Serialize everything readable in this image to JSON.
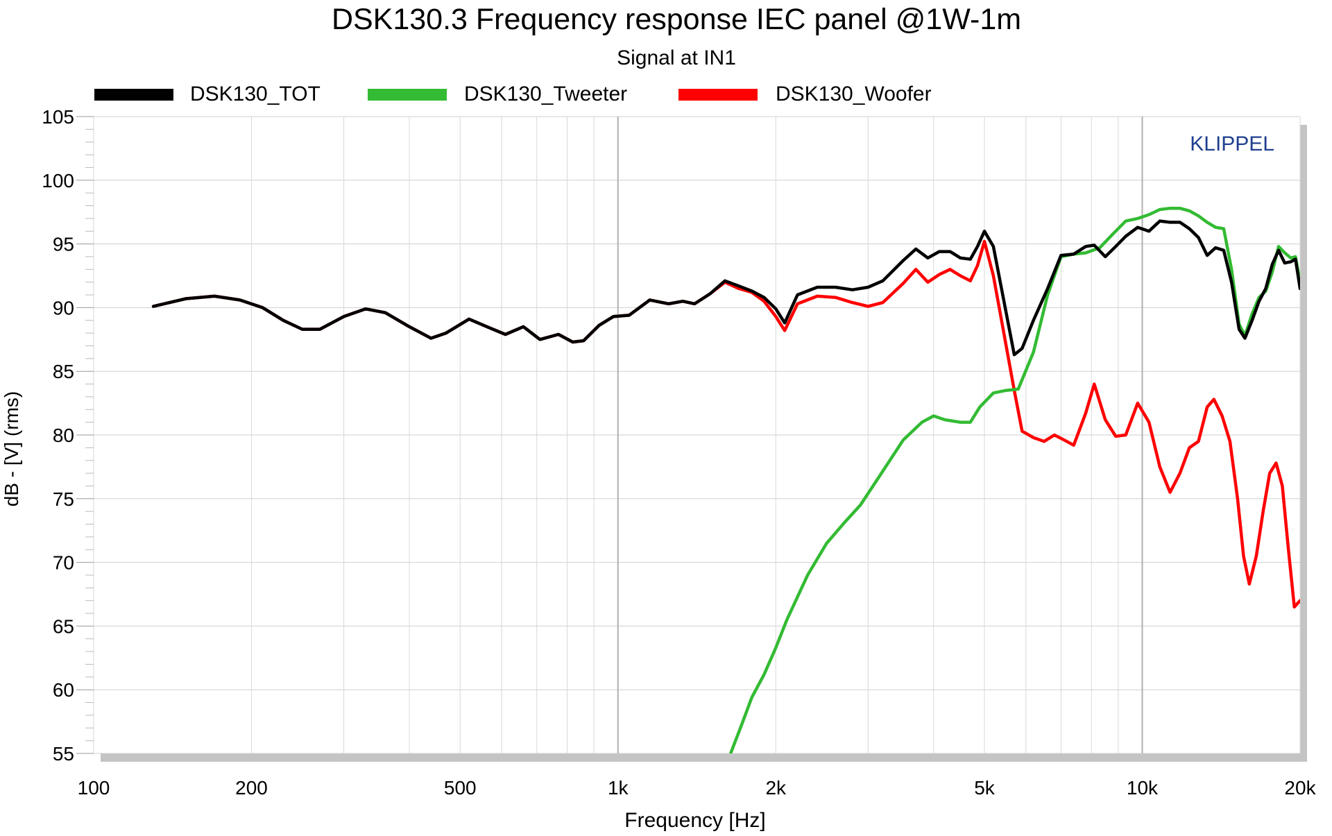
{
  "chart_data": {
    "type": "line",
    "title": "DSK130.3 Frequency response IEC panel @1W-1m",
    "subtitle": "Signal at IN1",
    "xlabel": "Frequency [Hz]",
    "ylabel": "dB - [V]  (rms)",
    "watermark": "KLIPPEL",
    "x_scale": "log",
    "xlim": [
      100,
      20000
    ],
    "ylim": [
      55,
      105
    ],
    "grid": true,
    "legend_position": "top",
    "x_ticks": [
      {
        "value": 100,
        "label": "100"
      },
      {
        "value": 200,
        "label": "200"
      },
      {
        "value": 500,
        "label": "500"
      },
      {
        "value": 1000,
        "label": "1k"
      },
      {
        "value": 2000,
        "label": "2k"
      },
      {
        "value": 5000,
        "label": "5k"
      },
      {
        "value": 10000,
        "label": "10k"
      },
      {
        "value": 20000,
        "label": "20k"
      }
    ],
    "y_ticks": [
      105,
      100,
      95,
      90,
      85,
      80,
      75,
      70,
      65,
      60,
      55
    ],
    "series": [
      {
        "name": "DSK130_Woofer",
        "color": "#ff0000",
        "points": [
          [
            130,
            90.1
          ],
          [
            150,
            90.7
          ],
          [
            170,
            90.9
          ],
          [
            190,
            90.6
          ],
          [
            210,
            90.0
          ],
          [
            230,
            89.0
          ],
          [
            250,
            88.3
          ],
          [
            270,
            88.3
          ],
          [
            300,
            89.3
          ],
          [
            330,
            89.9
          ],
          [
            360,
            89.6
          ],
          [
            400,
            88.5
          ],
          [
            440,
            87.6
          ],
          [
            470,
            88.0
          ],
          [
            520,
            89.1
          ],
          [
            570,
            88.4
          ],
          [
            610,
            87.9
          ],
          [
            660,
            88.5
          ],
          [
            710,
            87.5
          ],
          [
            770,
            87.9
          ],
          [
            820,
            87.3
          ],
          [
            860,
            87.4
          ],
          [
            920,
            88.6
          ],
          [
            980,
            89.3
          ],
          [
            1050,
            89.4
          ],
          [
            1150,
            90.6
          ],
          [
            1250,
            90.3
          ],
          [
            1330,
            90.5
          ],
          [
            1400,
            90.3
          ],
          [
            1500,
            91.1
          ],
          [
            1600,
            92.0
          ],
          [
            1700,
            91.5
          ],
          [
            1800,
            91.2
          ],
          [
            1900,
            90.5
          ],
          [
            2000,
            89.3
          ],
          [
            2080,
            88.2
          ],
          [
            2200,
            90.3
          ],
          [
            2400,
            90.9
          ],
          [
            2600,
            90.8
          ],
          [
            2800,
            90.4
          ],
          [
            3000,
            90.1
          ],
          [
            3200,
            90.4
          ],
          [
            3500,
            91.9
          ],
          [
            3700,
            93.0
          ],
          [
            3900,
            92.0
          ],
          [
            4100,
            92.6
          ],
          [
            4300,
            93.0
          ],
          [
            4500,
            92.5
          ],
          [
            4700,
            92.1
          ],
          [
            4850,
            93.3
          ],
          [
            5000,
            95.2
          ],
          [
            5200,
            92.5
          ],
          [
            5400,
            88.8
          ],
          [
            5700,
            83.5
          ],
          [
            5900,
            80.3
          ],
          [
            6200,
            79.8
          ],
          [
            6500,
            79.5
          ],
          [
            6800,
            80.0
          ],
          [
            7100,
            79.6
          ],
          [
            7400,
            79.2
          ],
          [
            7800,
            81.7
          ],
          [
            8100,
            84.0
          ],
          [
            8500,
            81.2
          ],
          [
            8900,
            79.9
          ],
          [
            9300,
            80.0
          ],
          [
            9800,
            82.5
          ],
          [
            10300,
            81.0
          ],
          [
            10800,
            77.5
          ],
          [
            11300,
            75.5
          ],
          [
            11800,
            77.0
          ],
          [
            12300,
            79.0
          ],
          [
            12800,
            79.5
          ],
          [
            13300,
            82.2
          ],
          [
            13700,
            82.8
          ],
          [
            14200,
            81.5
          ],
          [
            14700,
            79.5
          ],
          [
            15200,
            75.0
          ],
          [
            15600,
            70.5
          ],
          [
            16000,
            68.3
          ],
          [
            16500,
            70.5
          ],
          [
            17000,
            74.0
          ],
          [
            17500,
            77.0
          ],
          [
            18000,
            77.8
          ],
          [
            18500,
            76.0
          ],
          [
            19000,
            71.0
          ],
          [
            19500,
            66.5
          ],
          [
            20000,
            67.0
          ]
        ]
      },
      {
        "name": "DSK130_Tweeter",
        "color": "#33bb33",
        "points": [
          [
            1640,
            55.0
          ],
          [
            1720,
            57.2
          ],
          [
            1800,
            59.4
          ],
          [
            1900,
            61.2
          ],
          [
            2000,
            63.3
          ],
          [
            2100,
            65.5
          ],
          [
            2300,
            69.0
          ],
          [
            2500,
            71.5
          ],
          [
            2700,
            73.1
          ],
          [
            2900,
            74.5
          ],
          [
            3100,
            76.3
          ],
          [
            3300,
            78.0
          ],
          [
            3500,
            79.6
          ],
          [
            3800,
            81.0
          ],
          [
            4000,
            81.5
          ],
          [
            4200,
            81.2
          ],
          [
            4500,
            81.0
          ],
          [
            4700,
            81.0
          ],
          [
            4900,
            82.2
          ],
          [
            5200,
            83.3
          ],
          [
            5500,
            83.5
          ],
          [
            5800,
            83.6
          ],
          [
            6200,
            86.5
          ],
          [
            6600,
            91.0
          ],
          [
            7000,
            94.0
          ],
          [
            7400,
            94.2
          ],
          [
            7800,
            94.3
          ],
          [
            8300,
            94.7
          ],
          [
            8800,
            95.8
          ],
          [
            9300,
            96.8
          ],
          [
            9800,
            97.0
          ],
          [
            10300,
            97.3
          ],
          [
            10800,
            97.7
          ],
          [
            11300,
            97.8
          ],
          [
            11800,
            97.8
          ],
          [
            12300,
            97.6
          ],
          [
            12800,
            97.2
          ],
          [
            13300,
            96.7
          ],
          [
            13800,
            96.3
          ],
          [
            14300,
            96.2
          ],
          [
            14800,
            93.0
          ],
          [
            15300,
            88.7
          ],
          [
            15700,
            87.8
          ],
          [
            16200,
            89.5
          ],
          [
            16700,
            90.8
          ],
          [
            17200,
            91.3
          ],
          [
            17700,
            92.8
          ],
          [
            18200,
            94.8
          ],
          [
            18700,
            94.3
          ],
          [
            19200,
            93.9
          ],
          [
            19600,
            94.0
          ],
          [
            20000,
            92.0
          ]
        ]
      },
      {
        "name": "DSK130_TOT",
        "color": "#000000",
        "points": [
          [
            130,
            90.1
          ],
          [
            150,
            90.7
          ],
          [
            170,
            90.9
          ],
          [
            190,
            90.6
          ],
          [
            210,
            90.0
          ],
          [
            230,
            89.0
          ],
          [
            250,
            88.3
          ],
          [
            270,
            88.3
          ],
          [
            300,
            89.3
          ],
          [
            330,
            89.9
          ],
          [
            360,
            89.6
          ],
          [
            400,
            88.5
          ],
          [
            440,
            87.6
          ],
          [
            470,
            88.0
          ],
          [
            520,
            89.1
          ],
          [
            570,
            88.4
          ],
          [
            610,
            87.9
          ],
          [
            660,
            88.5
          ],
          [
            710,
            87.5
          ],
          [
            770,
            87.9
          ],
          [
            820,
            87.3
          ],
          [
            860,
            87.4
          ],
          [
            920,
            88.6
          ],
          [
            980,
            89.3
          ],
          [
            1050,
            89.4
          ],
          [
            1150,
            90.6
          ],
          [
            1250,
            90.3
          ],
          [
            1330,
            90.5
          ],
          [
            1400,
            90.3
          ],
          [
            1500,
            91.1
          ],
          [
            1600,
            92.1
          ],
          [
            1700,
            91.7
          ],
          [
            1800,
            91.3
          ],
          [
            1900,
            90.8
          ],
          [
            2000,
            89.9
          ],
          [
            2080,
            88.8
          ],
          [
            2200,
            91.0
          ],
          [
            2400,
            91.6
          ],
          [
            2600,
            91.6
          ],
          [
            2800,
            91.4
          ],
          [
            3000,
            91.6
          ],
          [
            3200,
            92.1
          ],
          [
            3500,
            93.7
          ],
          [
            3700,
            94.6
          ],
          [
            3900,
            93.9
          ],
          [
            4100,
            94.4
          ],
          [
            4300,
            94.4
          ],
          [
            4500,
            93.9
          ],
          [
            4700,
            93.8
          ],
          [
            4850,
            94.8
          ],
          [
            5000,
            96.0
          ],
          [
            5200,
            94.8
          ],
          [
            5400,
            91.3
          ],
          [
            5700,
            86.3
          ],
          [
            5900,
            86.8
          ],
          [
            6200,
            89.0
          ],
          [
            6600,
            91.5
          ],
          [
            7000,
            94.1
          ],
          [
            7400,
            94.2
          ],
          [
            7800,
            94.8
          ],
          [
            8100,
            94.9
          ],
          [
            8500,
            94.0
          ],
          [
            8900,
            94.8
          ],
          [
            9300,
            95.6
          ],
          [
            9800,
            96.3
          ],
          [
            10300,
            96.0
          ],
          [
            10800,
            96.8
          ],
          [
            11300,
            96.7
          ],
          [
            11800,
            96.7
          ],
          [
            12300,
            96.2
          ],
          [
            12800,
            95.5
          ],
          [
            13300,
            94.1
          ],
          [
            13800,
            94.7
          ],
          [
            14300,
            94.5
          ],
          [
            14800,
            92.0
          ],
          [
            15300,
            88.3
          ],
          [
            15700,
            87.6
          ],
          [
            16200,
            89.0
          ],
          [
            16700,
            90.5
          ],
          [
            17200,
            91.5
          ],
          [
            17700,
            93.4
          ],
          [
            18200,
            94.5
          ],
          [
            18700,
            93.5
          ],
          [
            19200,
            93.6
          ],
          [
            19600,
            93.8
          ],
          [
            20000,
            91.5
          ]
        ]
      }
    ],
    "legend": [
      {
        "name": "DSK130_TOT",
        "color": "#000000"
      },
      {
        "name": "DSK130_Tweeter",
        "color": "#33bb33"
      },
      {
        "name": "DSK130_Woofer",
        "color": "#ff0000"
      }
    ]
  }
}
